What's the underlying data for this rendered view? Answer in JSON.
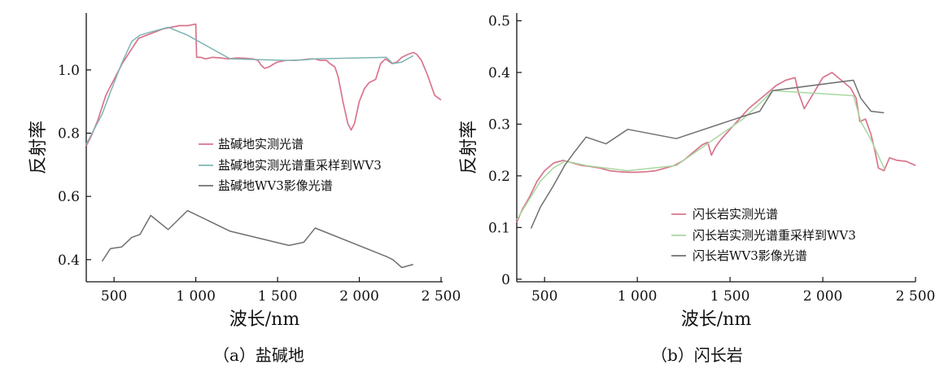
{
  "chart_data": [
    {
      "type": "line",
      "title": "",
      "caption": "（a）盐碱地",
      "xlabel": "波长/nm",
      "ylabel": "反射率",
      "xlim": [
        330,
        2510
      ],
      "ylim": [
        0.33,
        1.18
      ],
      "xticks": [
        500,
        1000,
        1500,
        2000,
        2500
      ],
      "xtick_labels": [
        "500",
        "1 000",
        "1 500",
        "2 000",
        "2 500"
      ],
      "yticks": [
        0.4,
        0.6,
        0.8,
        1.0
      ],
      "ytick_labels": [
        "0.4",
        "0.6",
        "0.8",
        "1.0"
      ],
      "legend_position": "center-right",
      "series": [
        {
          "name": "盐碱地实测光谱",
          "color": "#d9758c",
          "x": [
            330,
            360,
            400,
            450,
            500,
            550,
            600,
            650,
            700,
            750,
            800,
            850,
            900,
            950,
            1000,
            1005,
            1030,
            1060,
            1100,
            1150,
            1200,
            1250,
            1300,
            1350,
            1380,
            1400,
            1420,
            1450,
            1480,
            1500,
            1550,
            1600,
            1650,
            1700,
            1730,
            1760,
            1800,
            1820,
            1850,
            1870,
            1900,
            1930,
            1950,
            1970,
            2000,
            2030,
            2060,
            2100,
            2130,
            2160,
            2200,
            2230,
            2260,
            2300,
            2330,
            2350,
            2380,
            2420,
            2460,
            2500
          ],
          "y": [
            0.76,
            0.79,
            0.84,
            0.92,
            0.97,
            1.02,
            1.06,
            1.1,
            1.11,
            1.12,
            1.13,
            1.135,
            1.14,
            1.14,
            1.145,
            1.04,
            1.04,
            1.035,
            1.04,
            1.038,
            1.035,
            1.038,
            1.037,
            1.035,
            1.03,
            1.015,
            1.005,
            1.01,
            1.02,
            1.025,
            1.03,
            1.03,
            1.032,
            1.035,
            1.035,
            1.03,
            1.03,
            1.02,
            1.01,
            0.98,
            0.9,
            0.83,
            0.81,
            0.83,
            0.9,
            0.94,
            0.96,
            0.97,
            1.02,
            1.035,
            1.02,
            1.025,
            1.04,
            1.05,
            1.055,
            1.05,
            1.03,
            0.98,
            0.92,
            0.905
          ]
        },
        {
          "name": "盐碱地实测光谱重采样到WV3",
          "color": "#7fb4b4",
          "x": [
            330,
            427,
            478,
            546,
            608,
            659,
            724,
            831,
            949,
            1210,
            1570,
            1660,
            1730,
            2165,
            2205,
            2260,
            2330
          ],
          "y": [
            0.765,
            0.86,
            0.93,
            1.02,
            1.09,
            1.11,
            1.12,
            1.135,
            1.11,
            1.035,
            1.03,
            1.032,
            1.035,
            1.04,
            1.02,
            1.025,
            1.045
          ]
        },
        {
          "name": "盐碱地WV3影像光谱",
          "color": "#707070",
          "x": [
            427,
            478,
            546,
            608,
            659,
            724,
            831,
            949,
            1210,
            1570,
            1660,
            1730,
            2165,
            2205,
            2260,
            2330
          ],
          "y": [
            0.395,
            0.435,
            0.44,
            0.47,
            0.48,
            0.54,
            0.495,
            0.555,
            0.49,
            0.445,
            0.455,
            0.5,
            0.41,
            0.4,
            0.375,
            0.385
          ]
        }
      ]
    },
    {
      "type": "line",
      "title": "",
      "caption": "（b）闪长岩",
      "xlabel": "波长/nm",
      "ylabel": "反射率",
      "xlim": [
        350,
        2500
      ],
      "ylim": [
        -0.005,
        0.515
      ],
      "xticks": [
        500,
        1000,
        1500,
        2000,
        2500
      ],
      "xtick_labels": [
        "500",
        "1 000",
        "1 500",
        "2 000",
        "2 500"
      ],
      "yticks": [
        0,
        0.1,
        0.2,
        0.3,
        0.4,
        0.5
      ],
      "ytick_labels": [
        "0",
        "0.1",
        "0.2",
        "0.3",
        "0.4",
        "0.5"
      ],
      "legend_position": "bottom-center",
      "series": [
        {
          "name": "闪长岩实测光谱",
          "color": "#d9758c",
          "x": [
            350,
            380,
            420,
            460,
            500,
            550,
            600,
            650,
            700,
            750,
            800,
            850,
            900,
            950,
            1000,
            1050,
            1100,
            1150,
            1200,
            1250,
            1300,
            1350,
            1380,
            1400,
            1420,
            1450,
            1500,
            1550,
            1600,
            1650,
            1700,
            1750,
            1800,
            1850,
            1870,
            1900,
            1950,
            2000,
            2050,
            2100,
            2150,
            2180,
            2200,
            2230,
            2260,
            2280,
            2300,
            2330,
            2360,
            2400,
            2450,
            2500
          ],
          "y": [
            0.11,
            0.135,
            0.16,
            0.19,
            0.21,
            0.225,
            0.23,
            0.225,
            0.22,
            0.218,
            0.215,
            0.21,
            0.208,
            0.207,
            0.207,
            0.208,
            0.21,
            0.215,
            0.22,
            0.23,
            0.245,
            0.26,
            0.265,
            0.24,
            0.255,
            0.27,
            0.29,
            0.31,
            0.33,
            0.345,
            0.36,
            0.375,
            0.385,
            0.39,
            0.36,
            0.33,
            0.36,
            0.39,
            0.4,
            0.385,
            0.37,
            0.35,
            0.305,
            0.31,
            0.28,
            0.25,
            0.215,
            0.21,
            0.235,
            0.23,
            0.228,
            0.22
          ]
        },
        {
          "name": "闪长岩实测光谱重采样到WV3",
          "color": "#a8d8a0",
          "x": [
            350,
            427,
            478,
            546,
            608,
            659,
            724,
            831,
            949,
            1210,
            1570,
            1660,
            1730,
            2165,
            2205,
            2260,
            2330
          ],
          "y": [
            0.115,
            0.16,
            0.19,
            0.215,
            0.228,
            0.225,
            0.22,
            0.215,
            0.21,
            0.22,
            0.31,
            0.34,
            0.365,
            0.355,
            0.305,
            0.27,
            0.215
          ]
        },
        {
          "name": "闪长岩WV3影像光谱",
          "color": "#707070",
          "x": [
            427,
            478,
            546,
            608,
            659,
            724,
            831,
            949,
            1210,
            1570,
            1660,
            1730,
            2165,
            2205,
            2260,
            2330
          ],
          "y": [
            0.098,
            0.14,
            0.18,
            0.22,
            0.245,
            0.275,
            0.262,
            0.29,
            0.272,
            0.315,
            0.325,
            0.365,
            0.385,
            0.35,
            0.325,
            0.322
          ]
        }
      ]
    }
  ]
}
